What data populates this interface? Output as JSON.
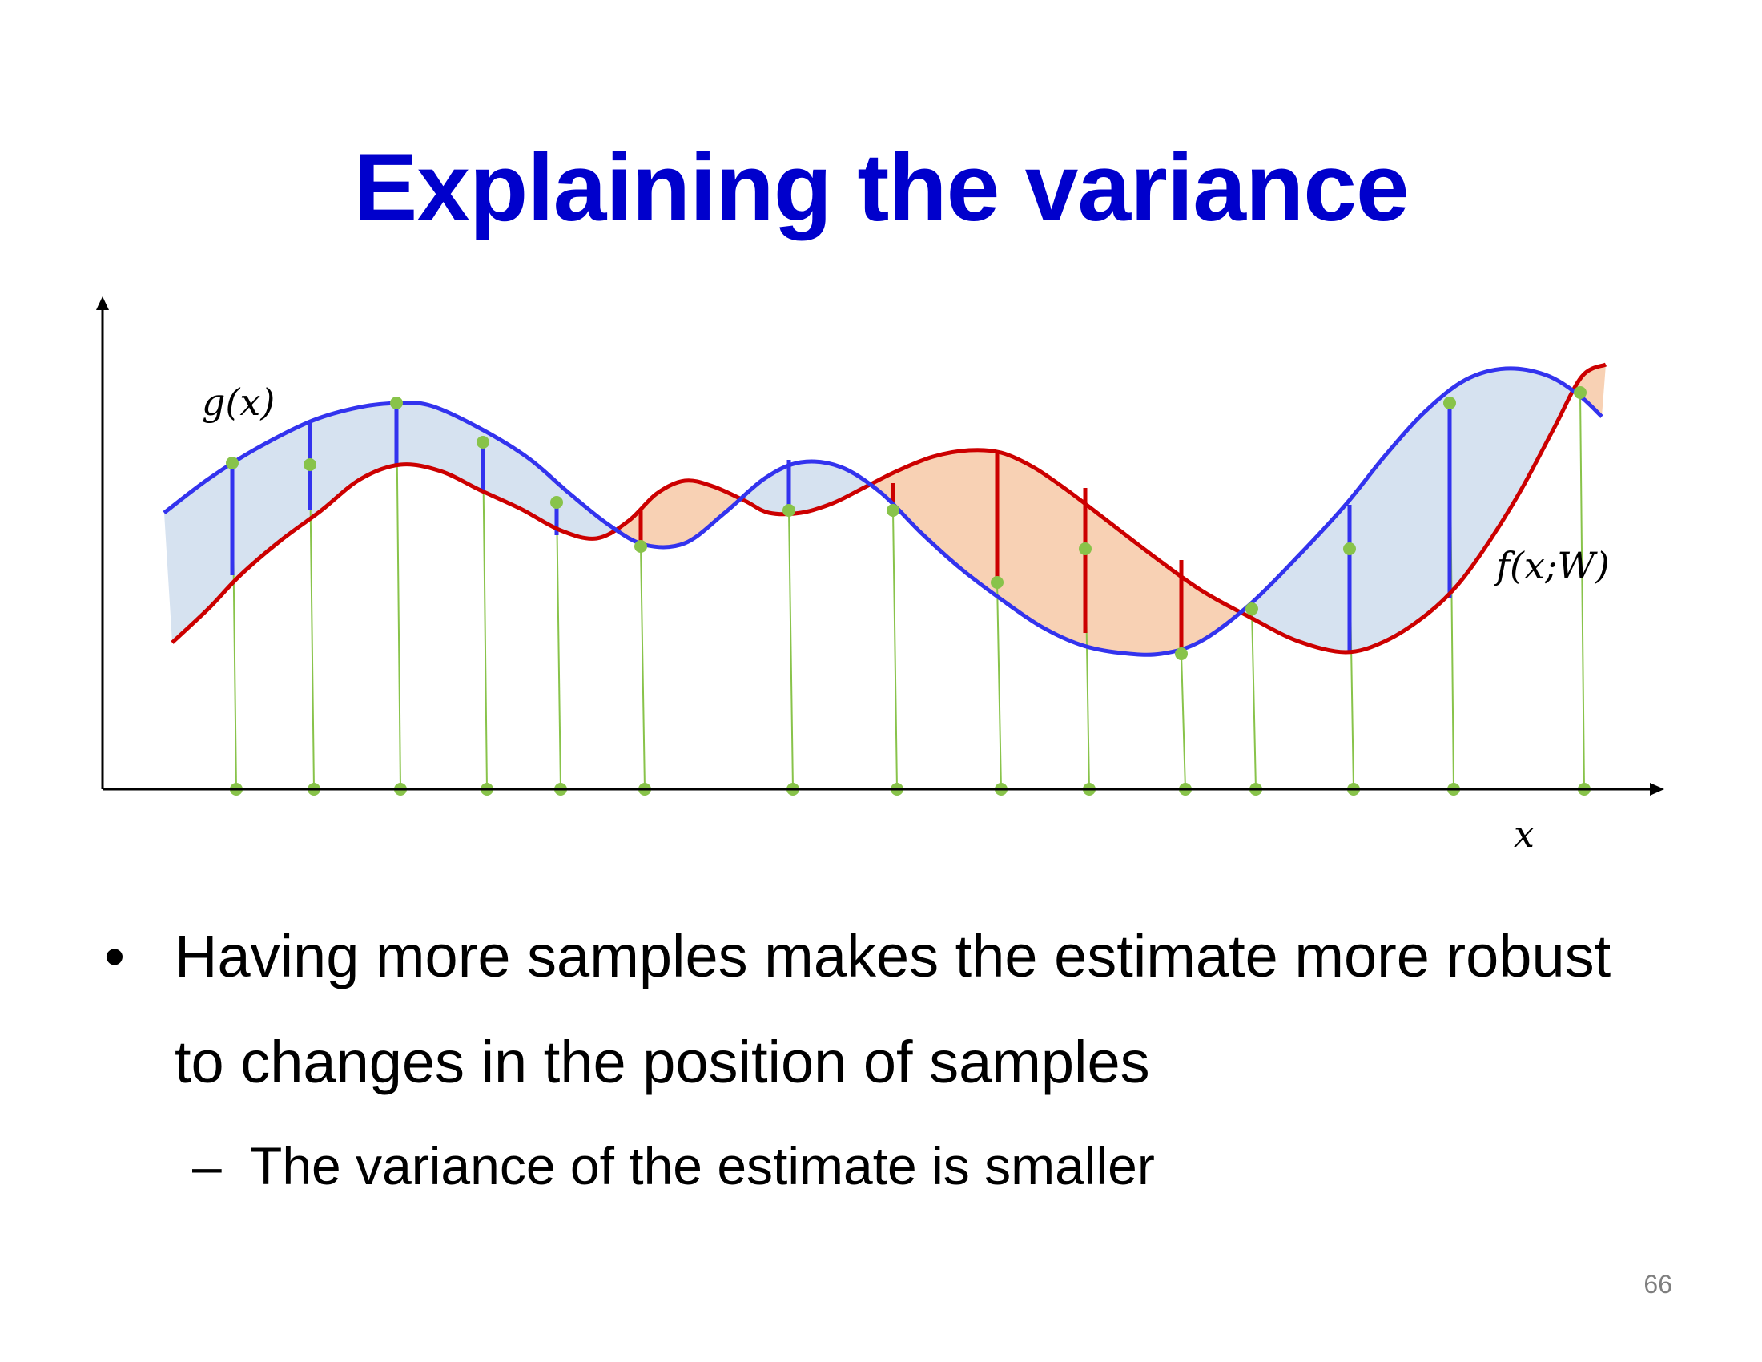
{
  "slide": {
    "title": "Explaining the variance",
    "page_number": "66"
  },
  "figure": {
    "label_g": "g(x)",
    "label_f": "f(x;W)",
    "label_x": "x",
    "colors": {
      "g_curve": "#3333ee",
      "f_curve": "#cc0000",
      "fill_g_above": "#d6e2f0",
      "fill_f_above": "#f8d1b4",
      "sample": "#88c34a"
    }
  },
  "bullets": [
    {
      "marker": "•",
      "text": "Having more samples makes the estimate more robust to changes in the position of samples"
    }
  ],
  "sub_bullets": [
    {
      "marker": "–",
      "text": "The variance of the estimate is smaller"
    }
  ]
}
